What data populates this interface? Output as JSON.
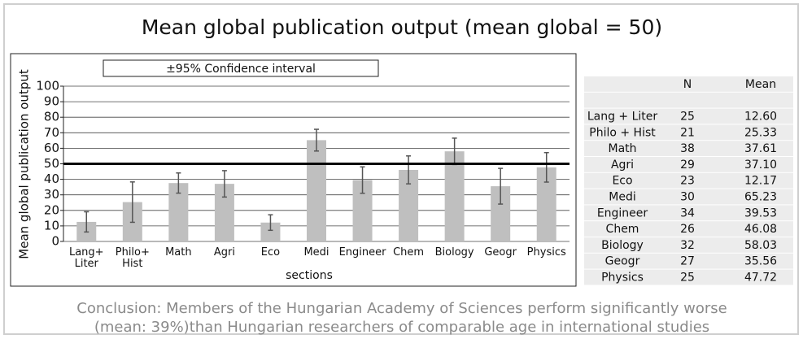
{
  "chart_data": {
    "type": "bar",
    "title": "Mean global publication output (mean global = 50)",
    "x_label": "sections",
    "y_label": "Mean global publication output",
    "error_label": "±95% Confidence interval",
    "categories": [
      "Lang+ Liter",
      "Philo+ Hist",
      "Math",
      "Agri",
      "Eco",
      "Medi",
      "Engineer",
      "Chem",
      "Biology",
      "Geogr",
      "Physics"
    ],
    "values": [
      12.6,
      25.33,
      37.61,
      37.1,
      12.17,
      65.23,
      39.53,
      46.08,
      58.03,
      35.56,
      47.72
    ],
    "errors": [
      6.5,
      13,
      6.5,
      8.5,
      5,
      7,
      8.5,
      9,
      8.5,
      11.5,
      9.5
    ],
    "color": "#bfbfbf",
    "reference_line": 50,
    "ylim": [
      0,
      100
    ],
    "yticks": [
      0,
      10,
      20,
      30,
      40,
      50,
      60,
      70,
      80,
      90,
      100
    ],
    "grid": true
  },
  "table": {
    "columns": [
      "N",
      "Mean"
    ],
    "rows": [
      [
        "Lang + Liter",
        "25",
        "12.60"
      ],
      [
        "Philo + Hist",
        "21",
        "25.33"
      ],
      [
        "Math",
        "38",
        "37.61"
      ],
      [
        "Agri",
        "29",
        "37.10"
      ],
      [
        "Eco",
        "23",
        "12.17"
      ],
      [
        "Medi",
        "30",
        "65.23"
      ],
      [
        "Engineer",
        "34",
        "39.53"
      ],
      [
        "Chem",
        "26",
        "46.08"
      ],
      [
        "Biology",
        "32",
        "58.03"
      ],
      [
        "Geogr",
        "27",
        "35.56"
      ],
      [
        "Physics",
        "25",
        "47.72"
      ]
    ]
  },
  "conclusion": [
    "Conclusion: Members of the Hungarian Academy of Sciences perform significantly worse",
    "(mean: 39%)than Hungarian researchers of comparable age in international studies"
  ]
}
